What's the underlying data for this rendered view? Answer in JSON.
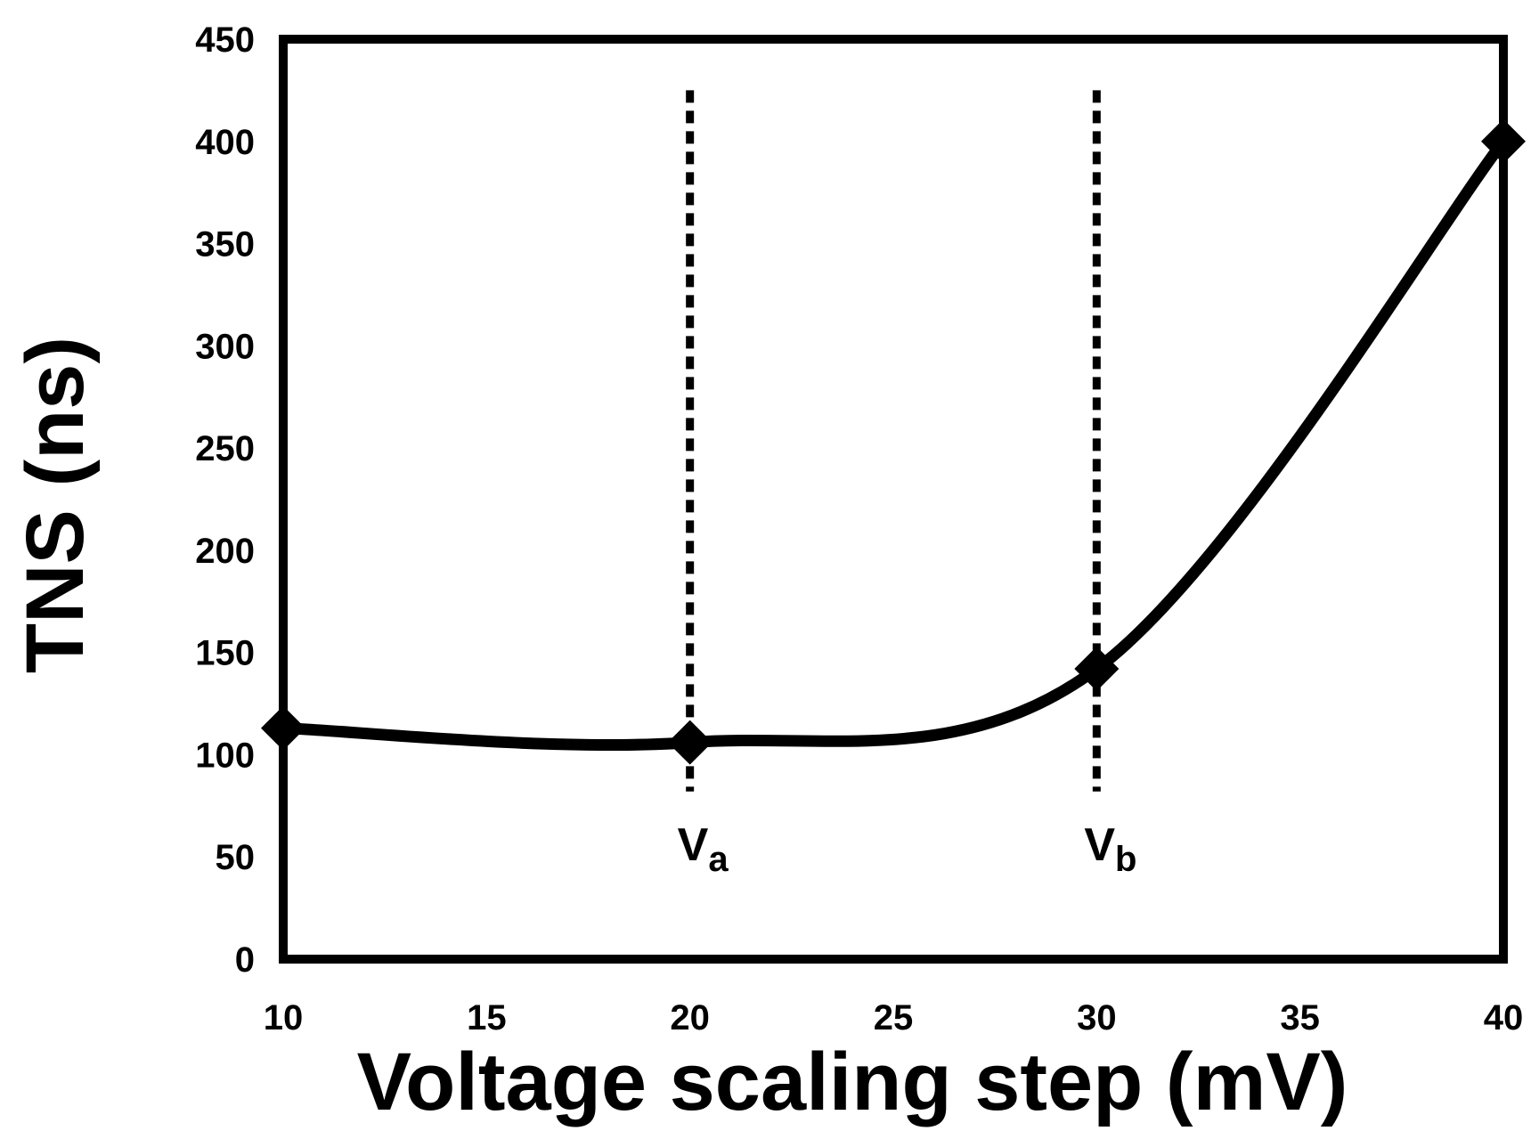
{
  "chart_data": {
    "type": "line",
    "title": "",
    "xlabel": "Voltage scaling step (mV)",
    "ylabel": "TNS (ns)",
    "xlim": [
      10,
      40
    ],
    "ylim": [
      0,
      450
    ],
    "xticks": [
      10,
      15,
      20,
      25,
      30,
      35,
      40
    ],
    "yticks": [
      0,
      50,
      100,
      150,
      200,
      250,
      300,
      350,
      400,
      450
    ],
    "grid": false,
    "legend": "none",
    "smooth": true,
    "series": [
      {
        "x": [
          10,
          20,
          30,
          40
        ],
        "values": [
          113,
          106,
          142,
          400
        ],
        "marker": "diamond",
        "color": "#000000"
      }
    ],
    "vertical_markers": [
      {
        "x": 20,
        "y_from": 82,
        "y_to": 425,
        "label": "V",
        "subscript": "a",
        "style": "dashed"
      },
      {
        "x": 30,
        "y_from": 82,
        "y_to": 425,
        "label": "V",
        "subscript": "b",
        "style": "dashed"
      }
    ],
    "colors": {
      "line": "#000000",
      "frame": "#000000",
      "background": "#ffffff"
    }
  }
}
